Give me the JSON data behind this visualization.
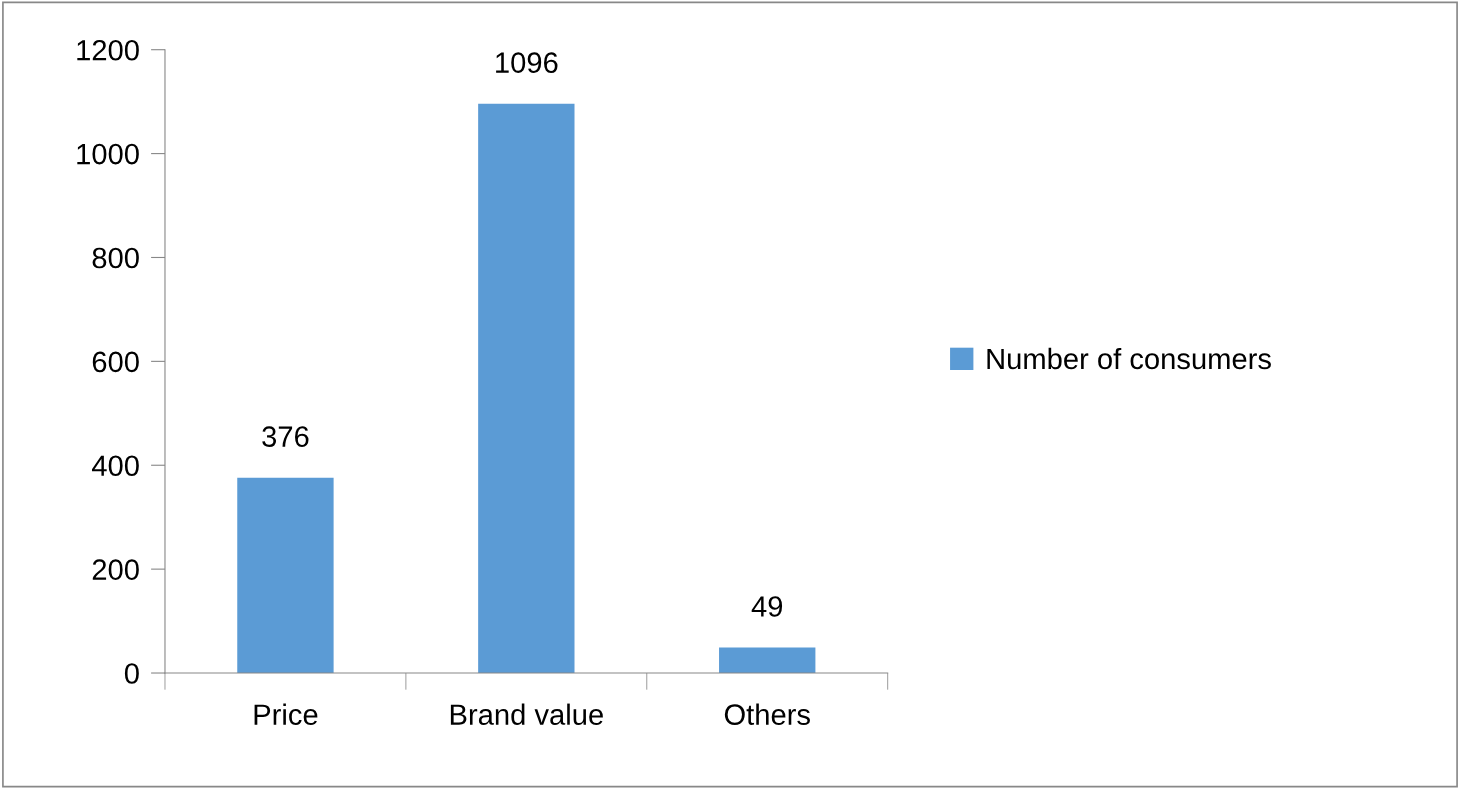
{
  "chart_data": {
    "type": "bar",
    "categories": [
      "Price",
      "Brand value",
      "Others"
    ],
    "series": [
      {
        "name": "Number of consumers",
        "color": "#5b9bd5",
        "values": [
          376,
          1096,
          49
        ]
      }
    ],
    "ylim": [
      0,
      1200
    ],
    "yticks": [
      0,
      200,
      400,
      600,
      800,
      1000,
      1200
    ],
    "grid": false,
    "legend": "right",
    "data_labels": true
  }
}
